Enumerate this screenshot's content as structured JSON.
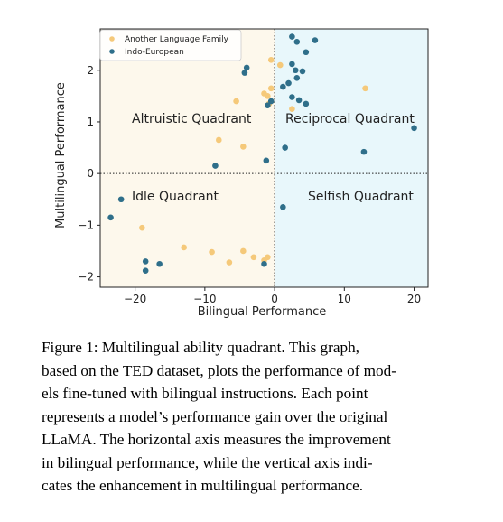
{
  "chart_data": {
    "type": "scatter",
    "xlabel": "Bilingual Performance",
    "ylabel": "Multilingual Performance",
    "xlim": [
      -25,
      22
    ],
    "ylim": [
      -2.2,
      2.8
    ],
    "x_ticks": [
      -20,
      -10,
      0,
      10,
      20
    ],
    "x_tick_labels": [
      "−20",
      "−10",
      "0",
      "10",
      "20"
    ],
    "y_ticks": [
      -2,
      -1,
      0,
      1,
      2
    ],
    "y_tick_labels": [
      "−2",
      "−1",
      "0",
      "1",
      "2"
    ],
    "reference_lines": {
      "x": 0,
      "y": 0,
      "style": "dotted"
    },
    "quadrants": [
      {
        "name": "Altruistic Quadrant",
        "label": "Altruistic Quadrant",
        "region": "x<0,y>0",
        "color": "#fdf8ec"
      },
      {
        "name": "Reciprocal Quadrant",
        "label": "Reciprocal Quadrant",
        "region": "x>0,y>0",
        "color": "#e8f7fb"
      },
      {
        "name": "Idle Quadrant",
        "label": "Idle Quadrant",
        "region": "x<0,y<0",
        "color": "#fdf8ec"
      },
      {
        "name": "Selfish Quadrant",
        "label": "Selfish Quadrant",
        "region": "x>0,y<0",
        "color": "#e8f7fb"
      }
    ],
    "legend_position": "top-left",
    "series": [
      {
        "name": "Another Language Family",
        "color": "#f5c97a",
        "points": [
          [
            -0.5,
            2.2
          ],
          [
            0.8,
            2.1
          ],
          [
            -0.5,
            1.65
          ],
          [
            -1.0,
            1.5
          ],
          [
            -1.5,
            1.55
          ],
          [
            -0.8,
            1.35
          ],
          [
            -5.5,
            1.4
          ],
          [
            2.5,
            1.25
          ],
          [
            13,
            1.65
          ],
          [
            -8,
            0.65
          ],
          [
            -4.5,
            0.52
          ],
          [
            -19,
            -1.05
          ],
          [
            -13,
            -1.43
          ],
          [
            -9,
            -1.52
          ],
          [
            -6.5,
            -1.72
          ],
          [
            -4.5,
            -1.5
          ],
          [
            -3,
            -1.62
          ],
          [
            -1,
            -1.62
          ],
          [
            -1.5,
            -1.68
          ]
        ]
      },
      {
        "name": "Indo-European",
        "color": "#2f6f8a",
        "points": [
          [
            2.5,
            2.65
          ],
          [
            3.2,
            2.55
          ],
          [
            5.8,
            2.58
          ],
          [
            4.5,
            2.35
          ],
          [
            -4.0,
            2.05
          ],
          [
            -4.3,
            1.95
          ],
          [
            2.5,
            2.12
          ],
          [
            3.0,
            2.0
          ],
          [
            4.0,
            1.98
          ],
          [
            3.2,
            1.85
          ],
          [
            2.0,
            1.75
          ],
          [
            1.2,
            1.68
          ],
          [
            2.5,
            1.48
          ],
          [
            3.5,
            1.42
          ],
          [
            4.5,
            1.35
          ],
          [
            -1.0,
            1.32
          ],
          [
            -0.5,
            1.4
          ],
          [
            20,
            0.88
          ],
          [
            12.8,
            0.42
          ],
          [
            1.5,
            0.5
          ],
          [
            -1.2,
            0.25
          ],
          [
            -8.5,
            0.15
          ],
          [
            -22,
            -0.5
          ],
          [
            -23.5,
            -0.85
          ],
          [
            1.2,
            -0.65
          ],
          [
            -18.5,
            -1.7
          ],
          [
            -16.5,
            -1.75
          ],
          [
            -18.5,
            -1.88
          ],
          [
            -1.5,
            -1.75
          ]
        ]
      }
    ]
  },
  "caption": {
    "lines": [
      "Figure 1:  Multilingual ability quadrant.  This graph,",
      "based on the TED dataset, plots the performance of mod-",
      "els fine-tuned with bilingual instructions. Each point",
      "represents a model’s performance gain over the original",
      "LLaMA. The horizontal axis measures the improvement",
      "in bilingual performance, while the vertical axis indi-",
      "cates the enhancement in multilingual performance."
    ]
  }
}
